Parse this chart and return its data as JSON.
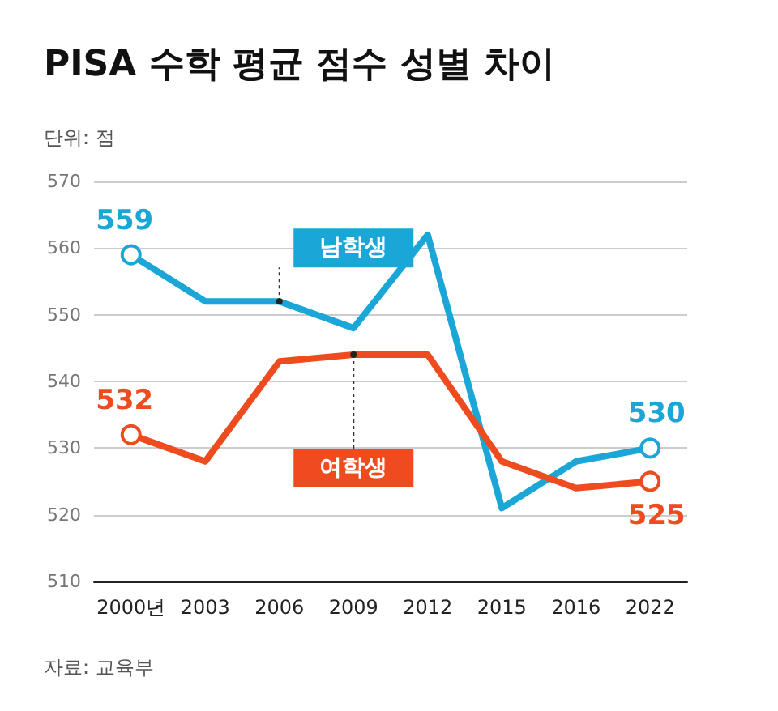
{
  "chart_data": {
    "type": "line",
    "title": "PISA 수학 평균 점수 성별 차이",
    "subtitle": "단위: 점",
    "annotations": [
      "자료: 교육부"
    ],
    "categories": [
      "2000년",
      "2003",
      "2006",
      "2009",
      "2012",
      "2015",
      "2016",
      "2022"
    ],
    "series": [
      {
        "name": "남학생",
        "color": "#1aa6d6",
        "values": [
          559,
          552,
          552,
          548,
          562,
          521,
          528,
          530
        ],
        "value_labels": [
          "559",
          null,
          null,
          null,
          null,
          null,
          null,
          "530"
        ]
      },
      {
        "name": "여학생",
        "color": "#ee4b1f",
        "values": [
          532,
          528,
          543,
          544,
          544,
          528,
          524,
          525
        ],
        "value_labels": [
          "532",
          null,
          null,
          null,
          null,
          null,
          null,
          "525"
        ]
      }
    ],
    "ylim": [
      510,
      570
    ],
    "yticks": [
      510,
      520,
      530,
      540,
      550,
      560,
      570
    ],
    "grid": "y",
    "line_style": "solid",
    "legend": false
  }
}
